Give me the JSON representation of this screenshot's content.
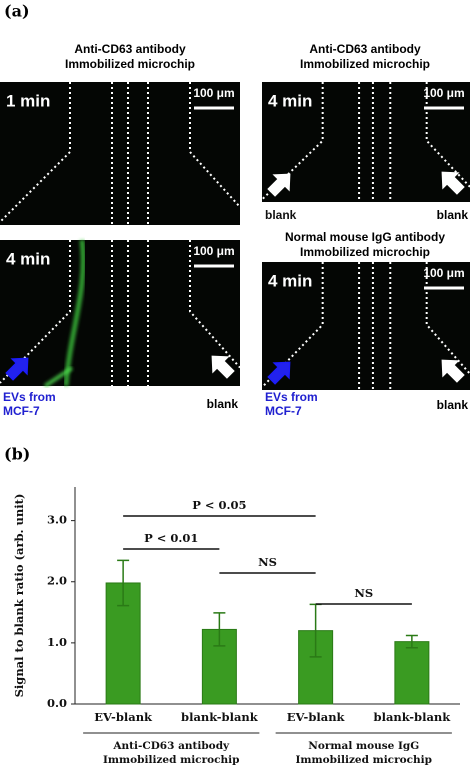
{
  "panel_a": {
    "label": "(a)",
    "images": [
      {
        "caption": [
          "Anti-CD63  antibody",
          "Immobilized  microchip"
        ],
        "time": "1 min",
        "scale": "100 μm"
      },
      {
        "caption": [
          "Anti-CD63 antibody",
          "Immobilized microchip"
        ],
        "time": "4 min",
        "scale": "100 μm",
        "left_label": [
          "blank"
        ],
        "right_label": "blank"
      },
      {
        "time": "4 min",
        "scale": "100 μm",
        "left_label": [
          "EVs from",
          "MCF-7"
        ],
        "right_label": "blank"
      },
      {
        "caption": [
          "Normal mouse IgG antibody",
          "Immobilized microchip"
        ],
        "time": "4 min",
        "scale": "100 μm",
        "left_label": [
          "EVs from",
          "MCF-7"
        ],
        "right_label": "blank"
      }
    ]
  },
  "panel_b_label": "(b)",
  "chart_data": {
    "type": "bar",
    "y_label": "Signal to blank ratio (arb. unit)",
    "categories": [
      "EV-blank",
      "blank-blank",
      "EV-blank",
      "blank-blank"
    ],
    "values": [
      1.98,
      1.22,
      1.2,
      1.02
    ],
    "errors": [
      0.37,
      0.27,
      0.43,
      0.1
    ],
    "color": "#3a9b22",
    "groups": [
      [
        "Anti-CD63 antibody",
        "Immobilized microchip"
      ],
      [
        "Normal mouse IgG",
        "Immobilized microchip"
      ]
    ],
    "annotations": [
      "P < 0.05",
      "P < 0.01",
      "NS",
      "NS"
    ],
    "ylim": [
      0,
      3.55
    ],
    "yticks": [
      {
        "value": 0,
        "label": "0.0"
      },
      {
        "value": 1,
        "label": "1.0"
      },
      {
        "value": 2,
        "label": "2.0"
      },
      {
        "value": 3,
        "label": "3.0"
      }
    ]
  }
}
